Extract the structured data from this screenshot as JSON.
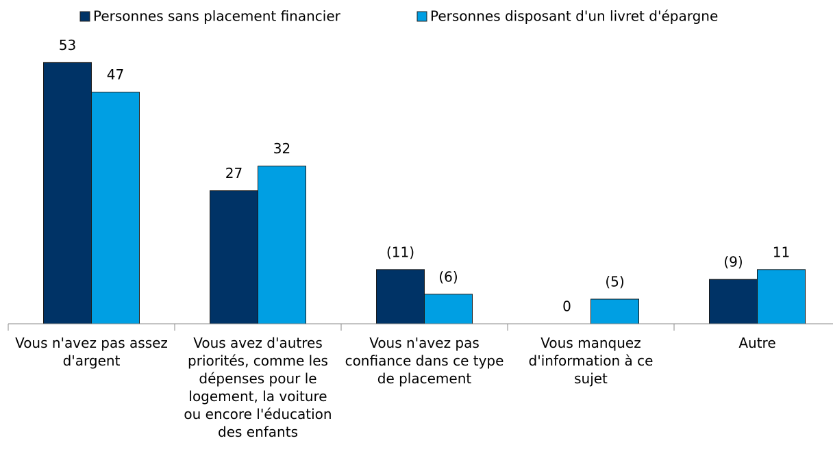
{
  "chart_data": {
    "type": "bar",
    "categories": [
      "Vous n'avez pas assez d'argent",
      "Vous avez d'autres priorités, comme les dépenses pour le logement, la voiture ou encore l'éducation des enfants",
      "Vous n'avez pas confiance dans ce type de placement",
      "Vous manquez d'information à ce sujet",
      "Autre"
    ],
    "series": [
      {
        "name": "Personnes sans placement financier",
        "color": "#003366",
        "values": [
          53,
          27,
          11,
          0,
          9
        ],
        "value_labels": [
          "53",
          "27",
          "(11)",
          "0",
          "(9)"
        ]
      },
      {
        "name": "Personnes disposant d'un livret d'épargne",
        "color": "#009fe3",
        "values": [
          47,
          32,
          6,
          5,
          11
        ],
        "value_labels": [
          "47",
          "32",
          "(6)",
          "(5)",
          "11"
        ]
      }
    ],
    "legend": "top"
  }
}
